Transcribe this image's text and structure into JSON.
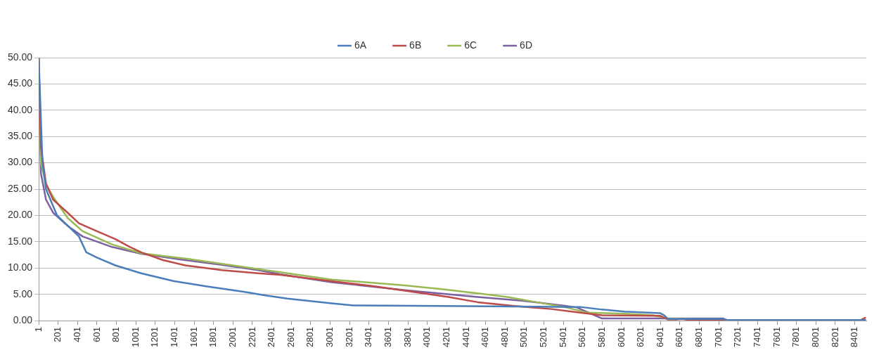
{
  "chart_data": {
    "type": "line",
    "xlim": [
      1,
      8520
    ],
    "ylim": [
      0,
      50
    ],
    "xticks": [
      1,
      201,
      401,
      601,
      801,
      1001,
      1201,
      1401,
      1601,
      1801,
      2001,
      2201,
      2401,
      2601,
      2801,
      3001,
      3201,
      3401,
      3601,
      3801,
      4001,
      4201,
      4401,
      4601,
      4801,
      5001,
      5201,
      5401,
      5601,
      5801,
      6001,
      6201,
      6401,
      6601,
      6801,
      7001,
      7201,
      7401,
      7601,
      7801,
      8001,
      8201,
      8401
    ],
    "yticks": [
      {
        "value": 0,
        "label": "0.00"
      },
      {
        "value": 5,
        "label": "5.00"
      },
      {
        "value": 10,
        "label": "10.00"
      },
      {
        "value": 15,
        "label": "15.00"
      },
      {
        "value": 20,
        "label": "20.00"
      },
      {
        "value": 25,
        "label": "25.00"
      },
      {
        "value": 30,
        "label": "30.00"
      },
      {
        "value": 35,
        "label": "35.00"
      },
      {
        "value": 40,
        "label": "40.00"
      },
      {
        "value": 45,
        "label": "45.00"
      },
      {
        "value": 50,
        "label": "50.00"
      }
    ],
    "grid": "y",
    "legend": "top",
    "marker": "none",
    "line_style": "solid",
    "series": [
      {
        "name": "6A",
        "color": "#4a7ebb",
        "x": [
          1,
          40,
          76,
          190,
          415,
          490,
          600,
          790,
          1055,
          1395,
          1735,
          2110,
          2335,
          2560,
          3015,
          3240,
          4145,
          5500,
          5575,
          5800,
          6030,
          6400,
          6440,
          6480,
          7050,
          7090,
          8515
        ],
        "values": [
          50,
          30,
          25,
          20,
          16,
          13,
          12,
          10.5,
          9,
          7.5,
          6.5,
          5.5,
          4.8,
          4.2,
          3.3,
          2.9,
          2.8,
          2.6,
          2.6,
          2.1,
          1.7,
          1.4,
          1.0,
          0.3,
          0.3,
          0.1,
          0.1
        ]
      },
      {
        "name": "6B",
        "color": "#be4b48",
        "x": [
          1,
          24,
          76,
          150,
          300,
          415,
          600,
          790,
          940,
          1055,
          1280,
          1510,
          1885,
          2260,
          2490,
          3015,
          3470,
          3845,
          4220,
          4520,
          4900,
          5280,
          5575,
          5800,
          6400,
          6480,
          6560,
          6630,
          6700,
          8460,
          8515
        ],
        "values": [
          50,
          33,
          26,
          23,
          20.5,
          18.5,
          17,
          15.5,
          14,
          13,
          11.5,
          10.5,
          9.6,
          9,
          8.7,
          7.5,
          6.5,
          5.5,
          4.5,
          3.5,
          2.8,
          2.2,
          1.5,
          1,
          0.9,
          0.2,
          0.2,
          0.3,
          0.1,
          0.1,
          0.6
        ]
      },
      {
        "name": "6C",
        "color": "#98b954",
        "x": [
          1,
          24,
          76,
          150,
          300,
          453,
          755,
          1055,
          1510,
          1885,
          2260,
          3015,
          3770,
          4145,
          4520,
          4825,
          5125,
          5430,
          5650,
          6030,
          6330,
          6480,
          7010,
          8515
        ],
        "values": [
          50,
          30,
          26,
          23.5,
          19.5,
          17,
          14.5,
          12.8,
          11.8,
          10.8,
          9.8,
          7.8,
          6.7,
          6,
          5.2,
          4.5,
          3.5,
          2.5,
          1.5,
          1.3,
          1,
          0.4,
          0.1,
          0.1
        ]
      },
      {
        "name": "6D",
        "color": "#7d60a0",
        "x": [
          1,
          24,
          76,
          150,
          300,
          453,
          755,
          1055,
          1510,
          1885,
          2260,
          2490,
          3015,
          3770,
          4520,
          4975,
          5430,
          5540,
          5800,
          7047,
          7085,
          8515
        ],
        "values": [
          50,
          28,
          23,
          20.5,
          18,
          16,
          14,
          12.7,
          11.5,
          10.6,
          9.6,
          8.8,
          7.3,
          5.8,
          4.5,
          3.8,
          2.8,
          2.5,
          0.4,
          0.4,
          0.1,
          0.1
        ]
      }
    ]
  }
}
